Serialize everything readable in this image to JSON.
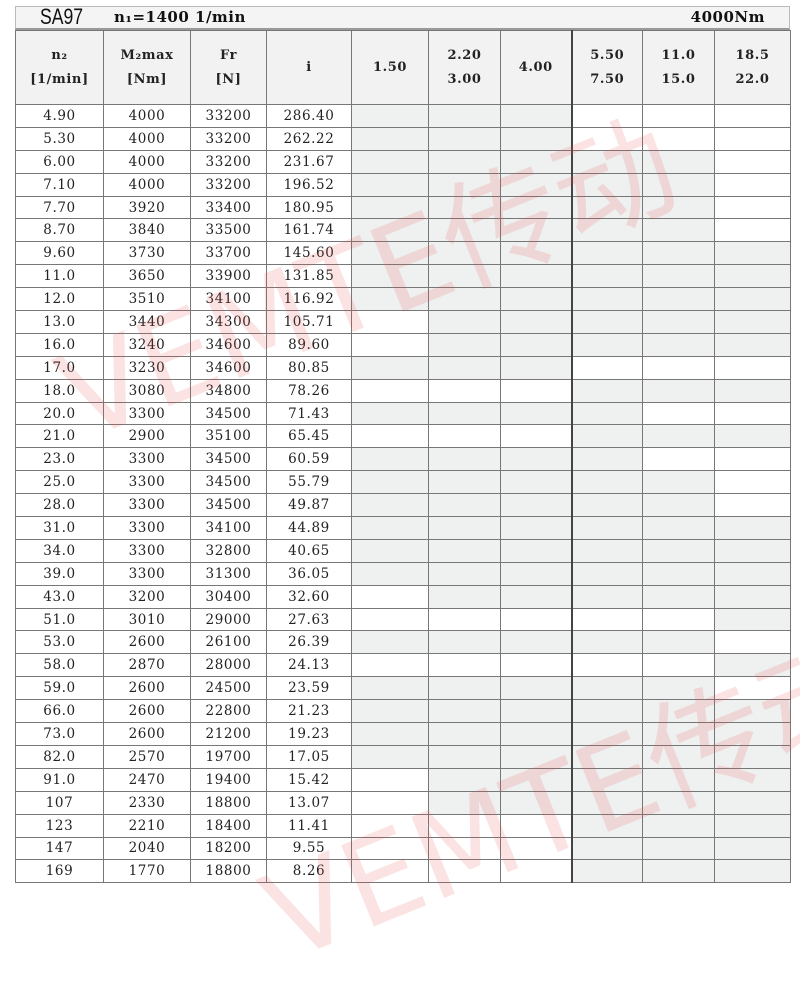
{
  "title": {
    "model": "SA97",
    "input_speed": "n₁=1400 1/min",
    "torque": "4000Nm"
  },
  "headers": [
    {
      "l1": "n₂",
      "l2": "[1/min]"
    },
    {
      "l1": "M₂max",
      "l2": "[Nm]"
    },
    {
      "l1": "Fr",
      "l2": "[N]"
    },
    {
      "l1": "i",
      "l2": ""
    },
    {
      "l1": "1.50",
      "l2": ""
    },
    {
      "l1": "2.20",
      "l2": "3.00"
    },
    {
      "l1": "4.00",
      "l2": ""
    },
    {
      "l1": "5.50",
      "l2": "7.50"
    },
    {
      "l1": "11.0",
      "l2": "15.0"
    },
    {
      "l1": "18.5",
      "l2": "22.0"
    }
  ],
  "shade_color": "#eff0f0",
  "rows": [
    {
      "n2": "4.90",
      "m2": "4000",
      "fr": "33200",
      "i": "286.40",
      "shaded": [
        1,
        1,
        1,
        0,
        0,
        0
      ]
    },
    {
      "n2": "5.30",
      "m2": "4000",
      "fr": "33200",
      "i": "262.22",
      "shaded": [
        1,
        1,
        1,
        0,
        0,
        0
      ]
    },
    {
      "n2": "6.00",
      "m2": "4000",
      "fr": "33200",
      "i": "231.67",
      "shaded": [
        1,
        1,
        1,
        1,
        1,
        0
      ]
    },
    {
      "n2": "7.10",
      "m2": "4000",
      "fr": "33200",
      "i": "196.52",
      "shaded": [
        1,
        1,
        1,
        1,
        1,
        0
      ]
    },
    {
      "n2": "7.70",
      "m2": "3920",
      "fr": "33400",
      "i": "180.95",
      "shaded": [
        1,
        1,
        1,
        1,
        1,
        0
      ]
    },
    {
      "n2": "8.70",
      "m2": "3840",
      "fr": "33500",
      "i": "161.74",
      "shaded": [
        1,
        1,
        1,
        1,
        1,
        0
      ]
    },
    {
      "n2": "9.60",
      "m2": "3730",
      "fr": "33700",
      "i": "145.60",
      "shaded": [
        1,
        1,
        1,
        1,
        1,
        1
      ]
    },
    {
      "n2": "11.0",
      "m2": "3650",
      "fr": "33900",
      "i": "131.85",
      "shaded": [
        1,
        1,
        1,
        1,
        1,
        1
      ]
    },
    {
      "n2": "12.0",
      "m2": "3510",
      "fr": "34100",
      "i": "116.92",
      "shaded": [
        1,
        1,
        1,
        1,
        1,
        1
      ]
    },
    {
      "n2": "13.0",
      "m2": "3440",
      "fr": "34300",
      "i": "105.71",
      "shaded": [
        0,
        1,
        1,
        1,
        1,
        1
      ]
    },
    {
      "n2": "16.0",
      "m2": "3240",
      "fr": "34600",
      "i": "89.60",
      "shaded": [
        0,
        1,
        1,
        1,
        1,
        1
      ]
    },
    {
      "n2": "17.0",
      "m2": "3230",
      "fr": "34600",
      "i": "80.85",
      "shaded": [
        1,
        1,
        1,
        0,
        0,
        0
      ]
    },
    {
      "n2": "18.0",
      "m2": "3080",
      "fr": "34800",
      "i": "78.26",
      "shaded": [
        0,
        0,
        0,
        1,
        1,
        1
      ]
    },
    {
      "n2": "20.0",
      "m2": "3300",
      "fr": "34500",
      "i": "71.43",
      "shaded": [
        1,
        1,
        1,
        1,
        0,
        0
      ]
    },
    {
      "n2": "21.0",
      "m2": "2900",
      "fr": "35100",
      "i": "65.45",
      "shaded": [
        0,
        0,
        0,
        1,
        1,
        1
      ]
    },
    {
      "n2": "23.0",
      "m2": "3300",
      "fr": "34500",
      "i": "60.59",
      "shaded": [
        1,
        1,
        1,
        1,
        0,
        0
      ]
    },
    {
      "n2": "25.0",
      "m2": "3300",
      "fr": "34500",
      "i": "55.79",
      "shaded": [
        1,
        1,
        1,
        1,
        1,
        0
      ]
    },
    {
      "n2": "28.0",
      "m2": "3300",
      "fr": "34500",
      "i": "49.87",
      "shaded": [
        1,
        1,
        1,
        1,
        1,
        0
      ]
    },
    {
      "n2": "31.0",
      "m2": "3300",
      "fr": "34100",
      "i": "44.89",
      "shaded": [
        1,
        1,
        1,
        1,
        1,
        1
      ]
    },
    {
      "n2": "34.0",
      "m2": "3300",
      "fr": "32800",
      "i": "40.65",
      "shaded": [
        1,
        1,
        1,
        1,
        1,
        1
      ]
    },
    {
      "n2": "39.0",
      "m2": "3300",
      "fr": "31300",
      "i": "36.05",
      "shaded": [
        1,
        1,
        1,
        1,
        1,
        1
      ]
    },
    {
      "n2": "43.0",
      "m2": "3200",
      "fr": "30400",
      "i": "32.60",
      "shaded": [
        0,
        1,
        1,
        1,
        1,
        1
      ]
    },
    {
      "n2": "51.0",
      "m2": "3010",
      "fr": "29000",
      "i": "27.63",
      "shaded": [
        0,
        0,
        0,
        0,
        0,
        1
      ]
    },
    {
      "n2": "53.0",
      "m2": "2600",
      "fr": "26100",
      "i": "26.39",
      "shaded": [
        1,
        1,
        1,
        1,
        1,
        0
      ]
    },
    {
      "n2": "58.0",
      "m2": "2870",
      "fr": "28000",
      "i": "24.13",
      "shaded": [
        0,
        0,
        0,
        0,
        0,
        1
      ]
    },
    {
      "n2": "59.0",
      "m2": "2600",
      "fr": "24500",
      "i": "23.59",
      "shaded": [
        1,
        1,
        1,
        1,
        1,
        0
      ]
    },
    {
      "n2": "66.0",
      "m2": "2600",
      "fr": "22800",
      "i": "21.23",
      "shaded": [
        1,
        1,
        1,
        1,
        1,
        1
      ]
    },
    {
      "n2": "73.0",
      "m2": "2600",
      "fr": "21200",
      "i": "19.23",
      "shaded": [
        1,
        1,
        1,
        1,
        1,
        1
      ]
    },
    {
      "n2": "82.0",
      "m2": "2570",
      "fr": "19700",
      "i": "17.05",
      "shaded": [
        1,
        1,
        1,
        1,
        1,
        1
      ]
    },
    {
      "n2": "91.0",
      "m2": "2470",
      "fr": "19400",
      "i": "15.42",
      "shaded": [
        0,
        1,
        1,
        1,
        1,
        1
      ]
    },
    {
      "n2": "107",
      "m2": "2330",
      "fr": "18800",
      "i": "13.07",
      "shaded": [
        0,
        1,
        1,
        1,
        1,
        1
      ]
    },
    {
      "n2": "123",
      "m2": "2210",
      "fr": "18400",
      "i": "11.41",
      "shaded": [
        0,
        0,
        0,
        1,
        1,
        1
      ]
    },
    {
      "n2": "147",
      "m2": "2040",
      "fr": "18200",
      "i": "9.55",
      "shaded": [
        0,
        0,
        0,
        1,
        1,
        1
      ]
    },
    {
      "n2": "169",
      "m2": "1770",
      "fr": "18800",
      "i": "8.26",
      "shaded": [
        0,
        0,
        0,
        1,
        1,
        1
      ]
    }
  ],
  "watermark": "VEMTE传动",
  "watermark_color": "#eb5050"
}
